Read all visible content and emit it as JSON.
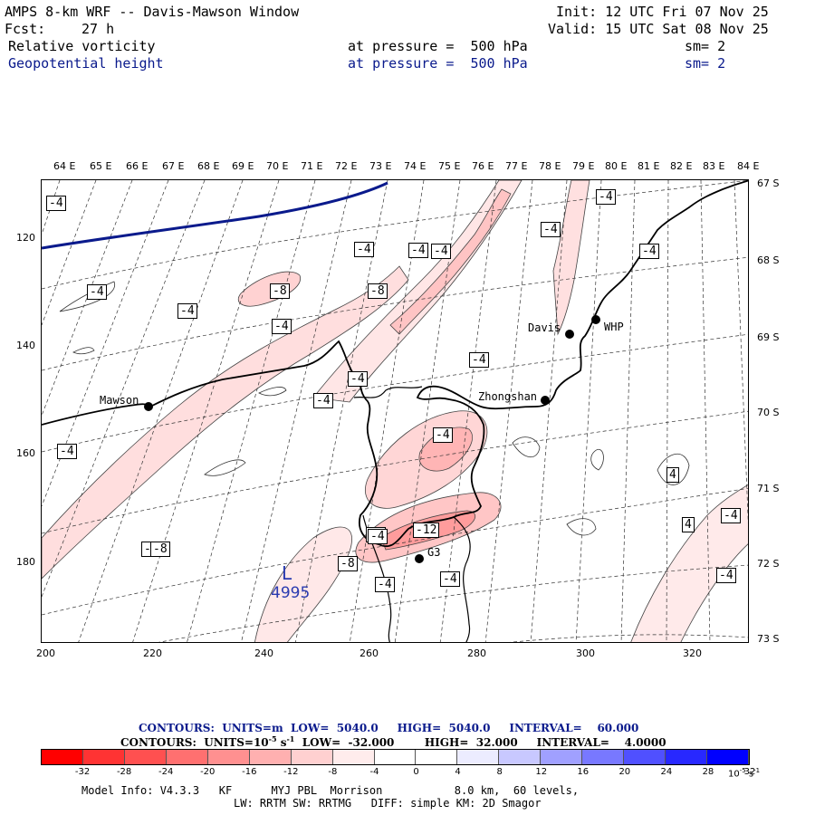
{
  "header": {
    "title": "AMPS 8-km WRF -- Davis-Mawson Window",
    "init": "Init: 12 UTC Fri 07 Nov 25",
    "fcst_label": "Fcst:",
    "fcst_value": "27 h",
    "valid": "Valid: 15 UTC Sat 08 Nov 25",
    "field1": {
      "name": "Relative vorticity",
      "level": "at pressure =  500 hPa",
      "sm": "sm= 2"
    },
    "field2": {
      "name": "Geopotential height",
      "level": "at pressure =  500 hPa",
      "sm": "sm= 2"
    }
  },
  "top_ticks": [
    "64 E",
    "65 E",
    "66 E",
    "67 E",
    "68 E",
    "69 E",
    "70 E",
    "71 E",
    "72 E",
    "73 E",
    "74 E",
    "75 E",
    "76 E",
    "77 E",
    "78 E",
    "79 E",
    "80 E",
    "81 E",
    "82 E",
    "83 E",
    "84 E"
  ],
  "right_ticks": [
    "67 S",
    "68 S",
    "69 S",
    "70 S",
    "71 S",
    "72 S",
    "73 S"
  ],
  "left_ticks": [
    "120",
    "140",
    "160",
    "180"
  ],
  "bottom_ticks": [
    "200",
    "220",
    "240",
    "260",
    "280",
    "300",
    "320"
  ],
  "stations": [
    {
      "name": "Mawson"
    },
    {
      "name": "Davis"
    },
    {
      "name": "WHP"
    },
    {
      "name": "Zhongshan"
    },
    {
      "name": "G3"
    }
  ],
  "contour_labels": [
    "-4",
    "-4",
    "-4",
    "-4",
    "-4",
    "-8",
    "-4",
    "-8",
    "-4",
    "-4",
    "-4",
    "-4",
    "-4",
    "-4",
    "-4",
    "-4",
    "-8",
    "-4",
    "-4",
    "-12",
    "-8",
    "-4",
    "-4",
    "-4",
    "4",
    "4",
    "-4",
    "-4",
    "-4"
  ],
  "low_marker": {
    "letter": "L",
    "value": "4995"
  },
  "contours": {
    "height": {
      "label": "CONTOURS:  UNITS=m  LOW=  5040.0     HIGH=  5040.0     INTERVAL=    60.000"
    },
    "vort": {
      "label": "CONTOURS:  UNITS=10",
      "exp": "-5",
      "rest": " s",
      "exp2": "-1",
      "tail": "  LOW=  -32.000        HIGH=  32.000     INTERVAL=    4.0000"
    }
  },
  "colorbar": {
    "colors": [
      "#ff0000",
      "#ff3333",
      "#ff5050",
      "#ff7070",
      "#ff9090",
      "#ffb0b0",
      "#ffd0d0",
      "#ffecec",
      "#ffffff",
      "#ffffff",
      "#ececff",
      "#c8c8ff",
      "#a0a0ff",
      "#7878ff",
      "#5050ff",
      "#2828ff",
      "#0000ff"
    ],
    "labels": [
      "-32",
      "-28",
      "-24",
      "-20",
      "-16",
      "-12",
      "-8",
      "-4",
      "0",
      "4",
      "8",
      "12",
      "16",
      "20",
      "24",
      "28",
      "32"
    ],
    "units": "10",
    "units_exp": "-5",
    "units_s": " s",
    "units_exp2": "-1"
  },
  "model_info": {
    "line1": "Model Info: V4.3.3   KF      MYJ PBL  Morrison           8.0 km,  60 levels,",
    "line2": "LW: RRTM SW: RRTMG   DIFF: simple KM: 2D Smagor"
  }
}
